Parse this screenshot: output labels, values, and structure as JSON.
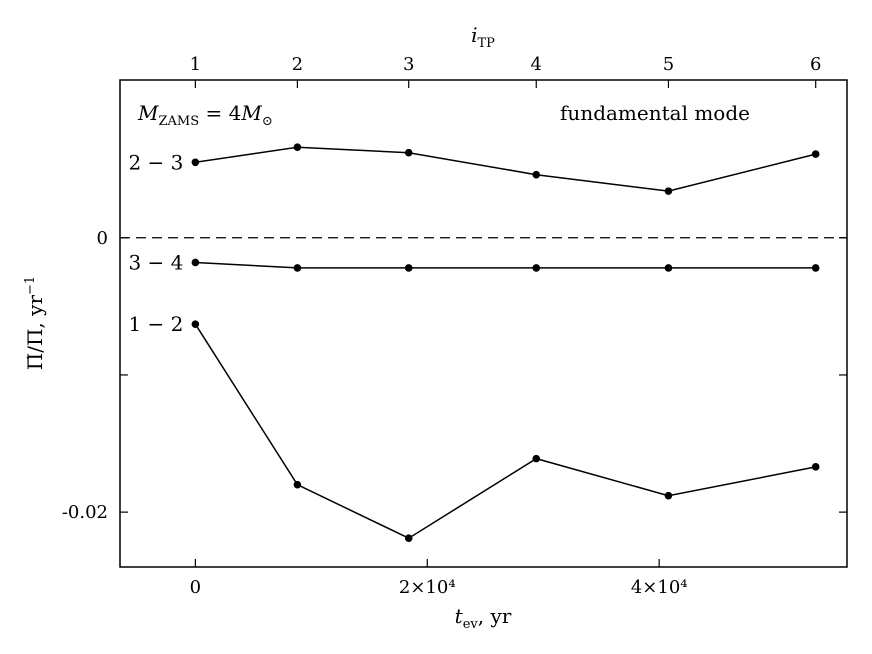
{
  "chart_data": {
    "type": "line",
    "x_top_label": "i_TP",
    "x_top_ticks": [
      {
        "label": "1",
        "t_ev": 0
      },
      {
        "label": "2",
        "t_ev": 8800
      },
      {
        "label": "3",
        "t_ev": 18400
      },
      {
        "label": "4",
        "t_ev": 29400
      },
      {
        "label": "5",
        "t_ev": 40800
      },
      {
        "label": "6",
        "t_ev": 53500
      }
    ],
    "xlabel": "t_ev, yr",
    "ylabel": "Π̇/Π, yr⁻¹",
    "xlim": [
      -6500,
      56200
    ],
    "ylim": [
      -0.024,
      0.0115
    ],
    "x_ticks": [
      {
        "value": 0,
        "label": "0"
      },
      {
        "value": 20000,
        "label": "2×10⁴"
      },
      {
        "value": 40000,
        "label": "4×10⁴"
      }
    ],
    "y_ticks": [
      {
        "value": 0,
        "label": "0"
      },
      {
        "value": -0.02,
        "label": "-0.02"
      }
    ],
    "y_minor_ticks": [
      -0.01
    ],
    "annotations": {
      "mass": "M_ZAMS = 4M_⊙",
      "mode": "fundamental mode"
    },
    "series": [
      {
        "name": "2 − 3",
        "x": [
          0,
          8800,
          18400,
          29400,
          40800,
          53500
        ],
        "y": [
          0.0055,
          0.0066,
          0.0062,
          0.0046,
          0.0034,
          0.0061
        ]
      },
      {
        "name": "3 − 4",
        "x": [
          0,
          8800,
          18400,
          29400,
          40800,
          53500
        ],
        "y": [
          -0.0018,
          -0.0022,
          -0.0022,
          -0.0022,
          -0.0022,
          -0.0022
        ]
      },
      {
        "name": "1 − 2",
        "x": [
          0,
          8800,
          18400,
          29400,
          40800,
          53500
        ],
        "y": [
          -0.0063,
          -0.018,
          -0.0219,
          -0.0161,
          -0.0188,
          -0.0167
        ]
      }
    ]
  }
}
